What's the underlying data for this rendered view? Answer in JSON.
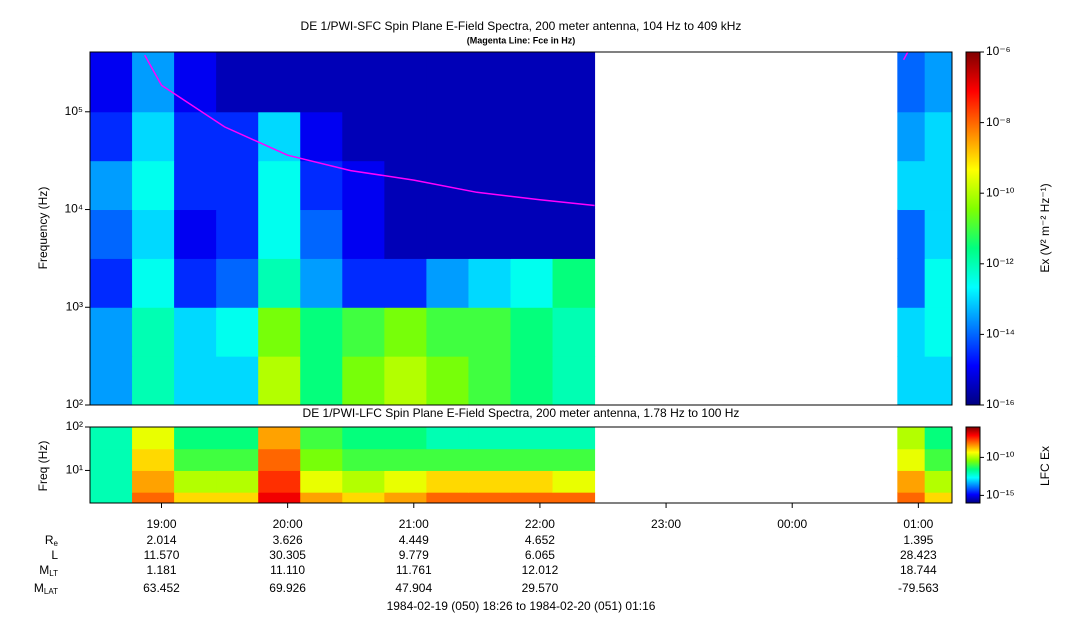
{
  "chart_data": [
    {
      "type": "heatmap",
      "title": "DE 1/PWI-SFC  Spin Plane E-Field Spectra, 200 meter antenna, 104 Hz to 409 kHz",
      "subtitle": "(Magenta Line: Fce in Hz)",
      "y_label": "Frequency (Hz)",
      "colorbar_label": "Ex (V² m⁻² Hz⁻¹)",
      "log_y": true,
      "log_z": true,
      "xlim": [
        18.4333,
        25.2667
      ],
      "ylim": [
        100,
        409000
      ],
      "yticks": [
        {
          "value": 100,
          "label": "10²"
        },
        {
          "value": 1000,
          "label": "10³"
        },
        {
          "value": 10000,
          "label": "10⁴"
        },
        {
          "value": 100000,
          "label": "10⁵"
        }
      ],
      "zlim": [
        1e-16,
        1e-06
      ],
      "zticks": [
        {
          "value": 1e-06,
          "label": "10⁻⁶"
        },
        {
          "value": 1e-08,
          "label": "10⁻⁸"
        },
        {
          "value": 1e-10,
          "label": "10⁻¹⁰"
        },
        {
          "value": 1e-12,
          "label": "10⁻¹²"
        },
        {
          "value": 1e-14,
          "label": "10⁻¹⁴"
        },
        {
          "value": 1e-16,
          "label": "10⁻¹⁶"
        }
      ],
      "colormap": [
        "#000080",
        "#0000ff",
        "#0080ff",
        "#00ffff",
        "#00ff80",
        "#80ff00",
        "#ffff00",
        "#ff8000",
        "#ff0000",
        "#800000"
      ],
      "x_bins": [
        18.4333,
        18.7667,
        19.1,
        19.4333,
        19.7667,
        20.1,
        20.4333,
        20.7667,
        21.1,
        21.4333,
        21.7667,
        22.1,
        22.4333,
        24.8333,
        25.05,
        25.2667
      ],
      "y_bins": [
        100,
        316,
        1000,
        3160,
        10000,
        31600,
        100000,
        409000
      ],
      "z": [
        [
          3e-14,
          1e-12,
          1e-13,
          1e-13,
          1e-10,
          3e-12,
          3e-11,
          1e-10,
          3e-11,
          1e-11,
          3e-12,
          1e-12,
          null,
          1e-13,
          1e-13
        ],
        [
          3e-14,
          1e-12,
          1e-13,
          3e-13,
          3e-11,
          3e-12,
          1e-11,
          3e-11,
          1e-11,
          1e-11,
          3e-12,
          1e-12,
          null,
          1e-13,
          3e-13
        ],
        [
          3e-15,
          3e-13,
          3e-15,
          1e-14,
          1e-12,
          3e-14,
          3e-15,
          3e-15,
          3e-14,
          1e-13,
          3e-13,
          3e-12,
          null,
          1e-14,
          3e-13
        ],
        [
          1e-14,
          1e-13,
          1e-15,
          3e-15,
          3e-13,
          1e-14,
          1e-15,
          3e-16,
          3e-16,
          3e-16,
          3e-16,
          3e-16,
          null,
          1e-14,
          1e-13
        ],
        [
          3e-14,
          3e-13,
          3e-15,
          3e-15,
          3e-13,
          3e-15,
          1e-15,
          3e-16,
          3e-16,
          3e-16,
          3e-16,
          3e-16,
          null,
          1e-13,
          1e-13
        ],
        [
          3e-15,
          1e-13,
          3e-15,
          3e-15,
          1e-13,
          1e-15,
          3e-16,
          3e-16,
          3e-16,
          3e-16,
          3e-16,
          3e-16,
          null,
          3e-14,
          1e-13
        ],
        [
          1e-15,
          3e-14,
          1e-15,
          3e-16,
          3e-16,
          3e-16,
          3e-16,
          3e-16,
          3e-16,
          3e-16,
          3e-16,
          3e-16,
          null,
          1e-14,
          3e-14
        ]
      ],
      "series": [
        {
          "color": "#ff00ff",
          "x": [
            18.8667,
            19.0,
            19.5,
            20.0,
            20.5,
            21.0,
            21.5,
            22.0,
            22.4333,
            null,
            24.8833,
            24.9167
          ],
          "values": [
            380000,
            187000,
            70000,
            36000,
            25000,
            20000,
            15000,
            12600,
            11000,
            null,
            340000,
            409000
          ]
        }
      ]
    },
    {
      "type": "heatmap",
      "title": "DE 1/PWI-LFC  Spin Plane E-Field Spectra, 200 meter antenna, 1.78 Hz to 100 Hz",
      "y_label": "Freq (Hz)",
      "colorbar_label": "LFC Ex",
      "log_y": true,
      "log_z": true,
      "xlim": [
        18.4333,
        25.2667
      ],
      "xticks": [
        {
          "value": 19,
          "label": "19:00"
        },
        {
          "value": 20,
          "label": "20:00"
        },
        {
          "value": 21,
          "label": "21:00"
        },
        {
          "value": 22,
          "label": "22:00"
        },
        {
          "value": 23,
          "label": "23:00"
        },
        {
          "value": 24,
          "label": "00:00"
        },
        {
          "value": 25,
          "label": "01:00"
        }
      ],
      "ylim": [
        1.78,
        100
      ],
      "yticks": [
        {
          "value": 10,
          "label": "10¹"
        },
        {
          "value": 100,
          "label": "10²"
        }
      ],
      "zlim": [
        1e-16,
        1e-06
      ],
      "zticks": [
        {
          "value": 1e-10,
          "label": "10⁻¹⁰"
        },
        {
          "value": 1e-15,
          "label": "10⁻¹⁵"
        }
      ],
      "colormap": [
        "#000080",
        "#0000ff",
        "#0080ff",
        "#00ffff",
        "#00ff80",
        "#80ff00",
        "#ffff00",
        "#ff8000",
        "#ff0000",
        "#800000"
      ],
      "x_bins": [
        18.4333,
        18.7667,
        19.1,
        19.4333,
        19.7667,
        20.1,
        20.4333,
        20.7667,
        21.1,
        21.4333,
        21.7667,
        22.1,
        22.4333,
        24.8333,
        25.05,
        25.2667
      ],
      "y_bins": [
        1.78,
        3.16,
        10,
        31.6,
        100
      ],
      "z": [
        [
          1e-12,
          1e-08,
          1e-09,
          1e-09,
          1e-07,
          3e-09,
          1e-09,
          3e-09,
          1e-08,
          1e-08,
          1e-08,
          1e-08,
          null,
          1e-08,
          1e-09
        ],
        [
          1e-12,
          3e-09,
          1e-10,
          1e-10,
          3e-08,
          3e-10,
          1e-10,
          3e-10,
          1e-09,
          1e-09,
          1e-09,
          3e-10,
          null,
          3e-09,
          1e-10
        ],
        [
          1e-12,
          1e-09,
          1e-11,
          1e-11,
          1e-08,
          3e-11,
          1e-11,
          1e-11,
          1e-11,
          1e-11,
          1e-11,
          1e-11,
          null,
          3e-10,
          1e-11
        ],
        [
          1e-12,
          3e-10,
          3e-12,
          3e-12,
          3e-09,
          1e-11,
          3e-12,
          3e-12,
          1e-12,
          1e-12,
          1e-12,
          1e-12,
          null,
          1e-10,
          3e-12
        ]
      ]
    }
  ],
  "ephemeris": {
    "x": [
      19,
      20,
      21,
      22,
      25
    ],
    "rows": [
      {
        "name": "R",
        "sub": "e",
        "values": [
          "2.014",
          "3.626",
          "4.449",
          "4.652",
          "1.395"
        ]
      },
      {
        "name": "L",
        "values": [
          "11.570",
          "30.305",
          "9.779",
          "6.065",
          "28.423"
        ]
      },
      {
        "name": "M",
        "sub": "LT",
        "values": [
          "1.181",
          "11.110",
          "11.761",
          "12.012",
          "18.744"
        ]
      },
      {
        "name": "M",
        "sub": "LAT",
        "values": [
          "63.452",
          "69.926",
          "47.904",
          "29.570",
          "-79.563"
        ]
      }
    ]
  },
  "footer": "1984-02-19 (050) 18:26 to 1984-02-20 (051) 01:16"
}
